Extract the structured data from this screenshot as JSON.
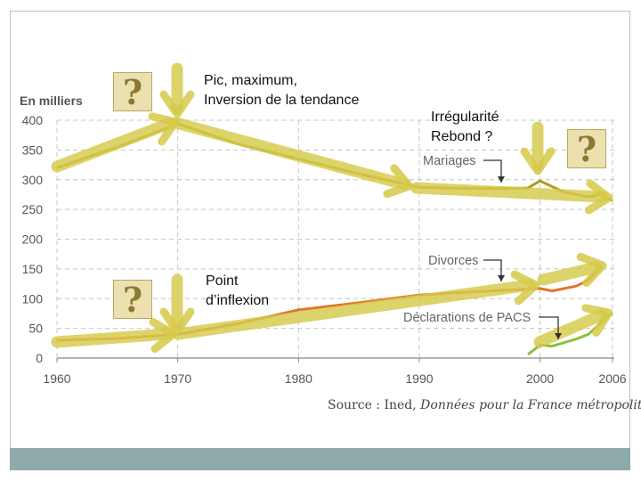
{
  "chart_data": {
    "type": "line",
    "title": "",
    "ylabel": "En milliers",
    "xlabel": "",
    "xlim": [
      1960,
      2006
    ],
    "ylim": [
      0,
      400
    ],
    "x_ticks": [
      1960,
      1970,
      1980,
      1990,
      2000,
      2006
    ],
    "y_ticks": [
      0,
      50,
      100,
      150,
      200,
      250,
      300,
      350,
      400
    ],
    "grid": true,
    "series": [
      {
        "name": "Mariages",
        "color": "#b39a1e",
        "points": [
          [
            1960,
            320
          ],
          [
            1965,
            355
          ],
          [
            1970,
            394
          ],
          [
            1975,
            360
          ],
          [
            1980,
            335
          ],
          [
            1985,
            310
          ],
          [
            1990,
            287
          ],
          [
            1995,
            285
          ],
          [
            1999,
            286
          ],
          [
            2000,
            298
          ],
          [
            2002,
            279
          ],
          [
            2004,
            271
          ],
          [
            2005,
            275
          ],
          [
            2006,
            265
          ]
        ]
      },
      {
        "name": "Divorces",
        "color": "#e2762b",
        "points": [
          [
            1960,
            30
          ],
          [
            1965,
            33
          ],
          [
            1970,
            40
          ],
          [
            1975,
            58
          ],
          [
            1980,
            81
          ],
          [
            1985,
            93
          ],
          [
            1990,
            106
          ],
          [
            1995,
            112
          ],
          [
            2000,
            117
          ],
          [
            2001,
            113
          ],
          [
            2003,
            121
          ],
          [
            2004,
            131
          ],
          [
            2005,
            151
          ]
        ]
      },
      {
        "name": "Déclarations de PACS",
        "color": "#8cbf3c",
        "points": [
          [
            1999,
            6
          ],
          [
            2000,
            22
          ],
          [
            2001,
            20
          ],
          [
            2003,
            32
          ],
          [
            2004,
            40
          ],
          [
            2006,
            77
          ]
        ]
      }
    ],
    "series_labels": {
      "mariages": "Mariages",
      "divorces": "Divorces",
      "pacs": "Déclarations de PACS"
    },
    "source_prefix": "Source : Ined, ",
    "source_italic": "Données pour la France métropolitaine."
  },
  "annotations": {
    "peak_line1": "Pic, maximum,",
    "peak_line2": "Inversion de la tendance",
    "irregular_line1": "Irrégularité",
    "irregular_line2": "Rebond ?",
    "inflection_line1": "Point",
    "inflection_line2": "d’inflexion",
    "question_mark": "?"
  },
  "colors": {
    "highlight_arrow": "#d6c94a",
    "question_box": "#ece0b0",
    "footer_bar": "#8eaaaa"
  }
}
